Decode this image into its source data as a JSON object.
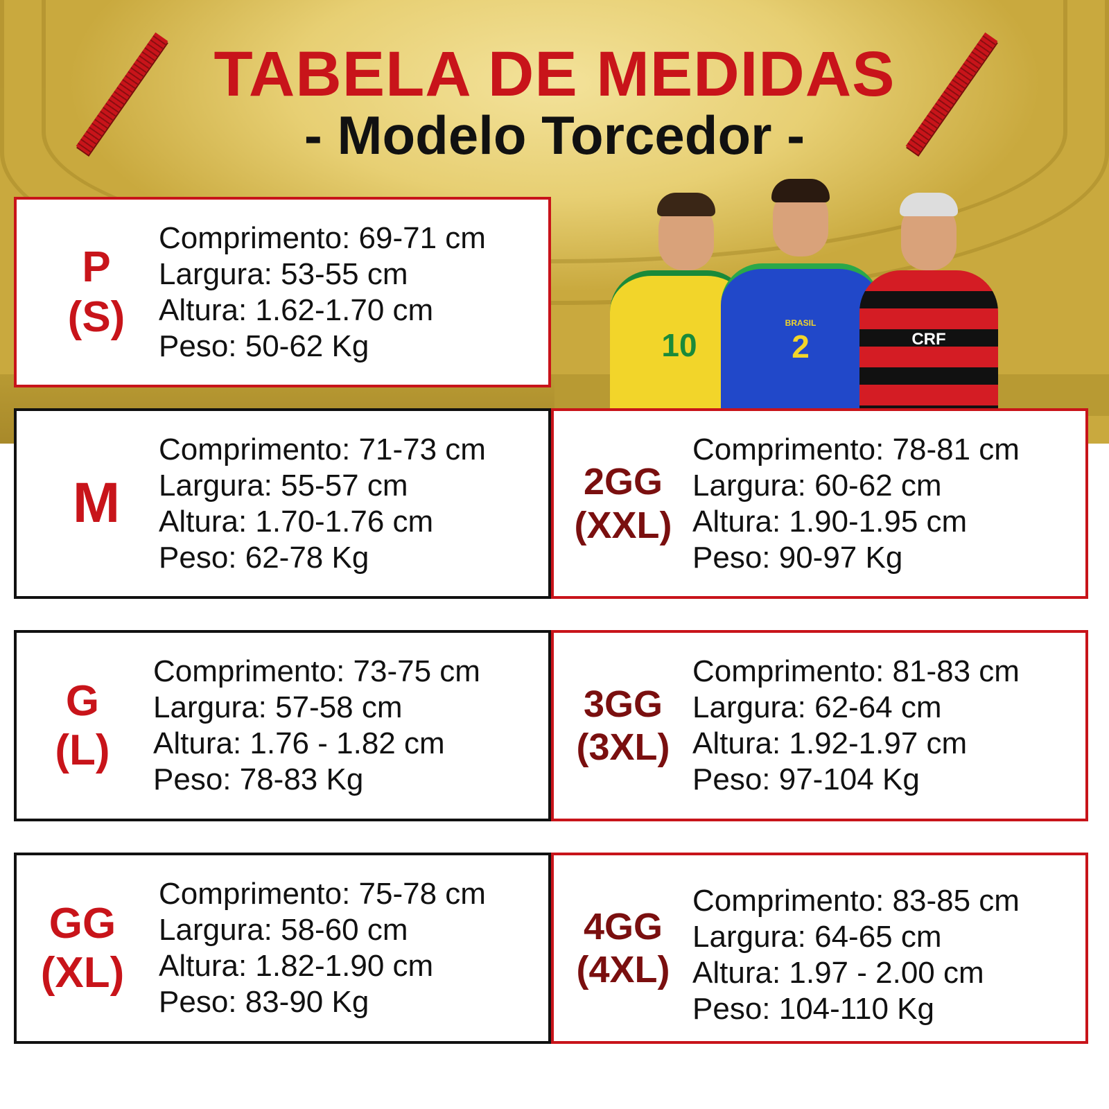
{
  "header": {
    "title": "TABELA DE MEDIDAS",
    "subtitle": "- Modelo Torcedor -"
  },
  "colors": {
    "accent_red": "#c8141a",
    "dark_red": "#7a0f0f",
    "background_gold": "#e7cf73"
  },
  "illustration": {
    "players": [
      {
        "jersey": "yellow Brazil",
        "number": "10"
      },
      {
        "jersey": "blue Brazil",
        "number": "2",
        "badge_text": "BRASIL"
      },
      {
        "jersey": "red-black Flamengo",
        "badge_text": "CRF"
      }
    ]
  },
  "sizes": [
    {
      "label": "P",
      "alt": "(S)",
      "comprimento": "Comprimento: 69-71 cm",
      "largura": "Largura: 53-55 cm",
      "altura": "Altura: 1.62-1.70 cm",
      "peso": "Peso: 50-62 Kg"
    },
    {
      "label": "M",
      "alt": "",
      "comprimento": "Comprimento: 71-73 cm",
      "largura": "Largura: 55-57 cm",
      "altura": "Altura: 1.70-1.76 cm",
      "peso": "Peso: 62-78 Kg"
    },
    {
      "label": "G",
      "alt": "(L)",
      "comprimento": "Comprimento: 73-75 cm",
      "largura": "Largura: 57-58 cm",
      "altura": "Altura: 1.76 - 1.82 cm",
      "peso": "Peso: 78-83 Kg"
    },
    {
      "label": "GG",
      "alt": "(XL)",
      "comprimento": "Comprimento: 75-78 cm",
      "largura": "Largura: 58-60 cm",
      "altura": "Altura: 1.82-1.90 cm",
      "peso": "Peso: 83-90 Kg"
    },
    {
      "label": "2GG",
      "alt": "(XXL)",
      "comprimento": "Comprimento: 78-81 cm",
      "largura": "Largura: 60-62 cm",
      "altura": "Altura: 1.90-1.95 cm",
      "peso": "Peso: 90-97 Kg"
    },
    {
      "label": "3GG",
      "alt": "(3XL)",
      "comprimento": "Comprimento: 81-83 cm",
      "largura": "Largura: 62-64 cm",
      "altura": "Altura: 1.92-1.97 cm",
      "peso": "Peso: 97-104 Kg"
    },
    {
      "label": "4GG",
      "alt": "(4XL)",
      "comprimento": "Comprimento: 83-85 cm",
      "largura": "Largura: 64-65 cm",
      "altura": "Altura: 1.97 - 2.00 cm",
      "peso": "Peso: 104-110 Kg"
    }
  ]
}
